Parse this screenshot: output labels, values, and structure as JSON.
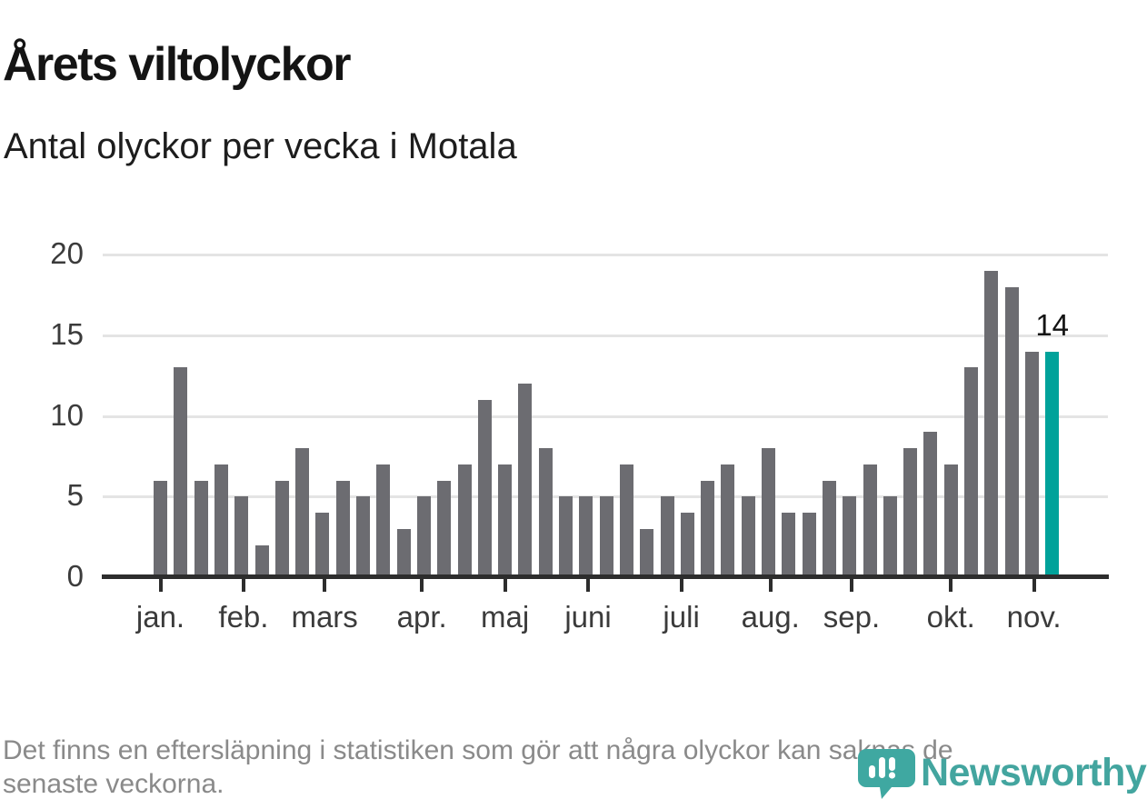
{
  "chart_data": {
    "type": "bar",
    "title": "Årets viltolyckor",
    "subtitle": "Antal olyckor per vecka i Motala",
    "x": [
      1,
      2,
      3,
      4,
      5,
      6,
      7,
      8,
      9,
      10,
      11,
      12,
      13,
      14,
      15,
      16,
      17,
      18,
      19,
      20,
      21,
      22,
      23,
      24,
      25,
      26,
      27,
      28,
      29,
      30,
      31,
      32,
      33,
      34,
      35,
      36,
      37,
      38,
      39,
      40,
      41,
      42,
      43,
      44,
      45
    ],
    "values": [
      6,
      13,
      6,
      7,
      5,
      2,
      6,
      8,
      4,
      6,
      5,
      7,
      3,
      5,
      6,
      7,
      11,
      7,
      12,
      8,
      5,
      5,
      5,
      7,
      3,
      5,
      4,
      6,
      7,
      5,
      8,
      4,
      4,
      6,
      5,
      7,
      5,
      8,
      9,
      7,
      13,
      19,
      18,
      14,
      14
    ],
    "highlight_last_bar": true,
    "bar_color": "#6c6c71",
    "highlight_color": "#00a29a",
    "annotation": {
      "text": "14",
      "week": 45
    },
    "ylim": [
      0,
      20
    ],
    "yticks": [
      0,
      5,
      10,
      15,
      20
    ],
    "grid": "horizontal",
    "legend": "none",
    "months": [
      {
        "label": "jan.",
        "week_position": 1.0
      },
      {
        "label": "feb.",
        "week_position": 5.1
      },
      {
        "label": "mars",
        "week_position": 9.1
      },
      {
        "label": "apr.",
        "week_position": 13.9
      },
      {
        "label": "maj",
        "week_position": 18.0
      },
      {
        "label": "juni",
        "week_position": 22.1
      },
      {
        "label": "juli",
        "week_position": 26.7
      },
      {
        "label": "aug.",
        "week_position": 31.1
      },
      {
        "label": "sep.",
        "week_position": 35.1
      },
      {
        "label": "okt.",
        "week_position": 40.0
      },
      {
        "label": "nov.",
        "week_position": 44.1
      }
    ]
  },
  "footer": {
    "lines": [
      "Det finns en eftersläpning i statistiken som gör att några olyckor kan saknas de",
      "senaste veckorna."
    ]
  },
  "logo": {
    "wordmark": "Newsworthy",
    "icon": "newsworthy-speech-bubble-bar-chart-icon",
    "icon_color": "#3fa8a1",
    "wordmark_color": "#43a59f"
  }
}
